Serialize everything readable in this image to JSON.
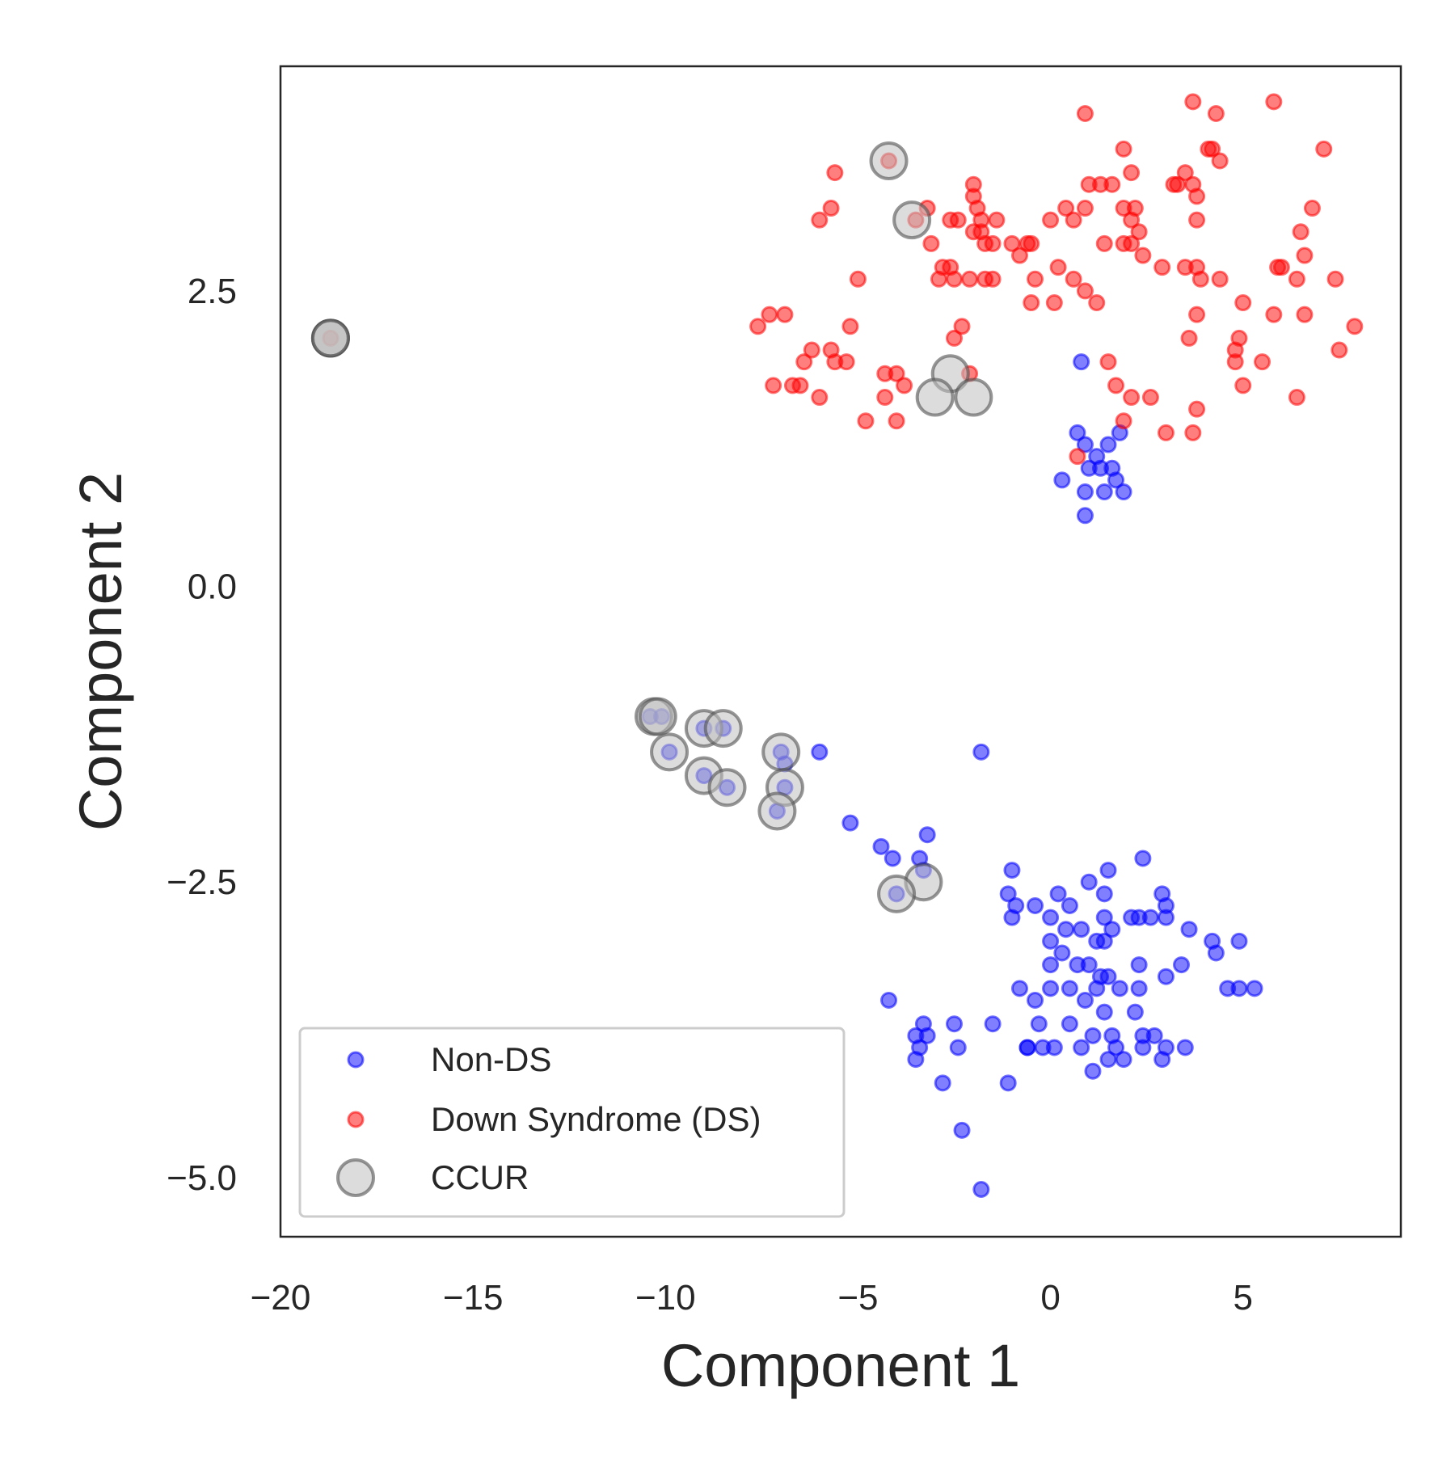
{
  "chart_data": {
    "type": "scatter",
    "title": "",
    "xlabel": "Component 1",
    "ylabel": "Component 2",
    "xlim": [
      -20,
      9.1
    ],
    "ylim": [
      -5.5,
      4.4
    ],
    "xticks": [
      -20,
      -15,
      -10,
      -5,
      0,
      5
    ],
    "xtick_labels": [
      "−20",
      "−15",
      "−10",
      "−5",
      "0",
      "5"
    ],
    "yticks": [
      2.5,
      0.0,
      -2.5,
      -5.0
    ],
    "ytick_labels": [
      "2.5",
      "0.0",
      "−2.5",
      "−5.0"
    ],
    "grid": false,
    "legend_position": "lower-left",
    "series": [
      {
        "name": "Non-DS",
        "color": "#0000ff",
        "marker": "circle",
        "points": [
          [
            0.8,
            1.9
          ],
          [
            0.7,
            1.3
          ],
          [
            0.9,
            1.2
          ],
          [
            1.2,
            1.1
          ],
          [
            1.5,
            1.2
          ],
          [
            1.8,
            1.3
          ],
          [
            1.0,
            1.0
          ],
          [
            1.3,
            1.0
          ],
          [
            1.6,
            1.0
          ],
          [
            0.3,
            0.9
          ],
          [
            0.9,
            0.8
          ],
          [
            1.4,
            0.8
          ],
          [
            1.7,
            0.9
          ],
          [
            1.9,
            0.8
          ],
          [
            0.9,
            0.6
          ],
          [
            -10.4,
            -1.1
          ],
          [
            -10.1,
            -1.1
          ],
          [
            -9.9,
            -1.4
          ],
          [
            -9.0,
            -1.2
          ],
          [
            -8.5,
            -1.2
          ],
          [
            -7.0,
            -1.4
          ],
          [
            -6.9,
            -1.5
          ],
          [
            -9.0,
            -1.6
          ],
          [
            -8.4,
            -1.7
          ],
          [
            -6.9,
            -1.7
          ],
          [
            -7.1,
            -1.9
          ],
          [
            -6.0,
            -1.4
          ],
          [
            -1.8,
            -1.4
          ],
          [
            -5.2,
            -2.0
          ],
          [
            -4.4,
            -2.2
          ],
          [
            -4.1,
            -2.3
          ],
          [
            -3.2,
            -2.1
          ],
          [
            -3.4,
            -2.3
          ],
          [
            -3.3,
            -2.4
          ],
          [
            -4.0,
            -2.6
          ],
          [
            -1.0,
            -2.4
          ],
          [
            -1.1,
            -2.6
          ],
          [
            -0.9,
            -2.7
          ],
          [
            0.2,
            -2.6
          ],
          [
            1.0,
            -2.5
          ],
          [
            1.5,
            -2.4
          ],
          [
            1.4,
            -2.6
          ],
          [
            2.4,
            -2.3
          ],
          [
            2.9,
            -2.6
          ],
          [
            -0.4,
            -2.7
          ],
          [
            0.0,
            -2.8
          ],
          [
            0.5,
            -2.7
          ],
          [
            1.4,
            -2.8
          ],
          [
            2.3,
            -2.8
          ],
          [
            3.0,
            -2.7
          ],
          [
            3.0,
            -2.8
          ],
          [
            -1.0,
            -2.8
          ],
          [
            0.4,
            -2.9
          ],
          [
            0.8,
            -2.9
          ],
          [
            1.6,
            -2.9
          ],
          [
            2.1,
            -2.8
          ],
          [
            2.6,
            -2.8
          ],
          [
            3.6,
            -2.9
          ],
          [
            0.0,
            -3.0
          ],
          [
            0.3,
            -3.1
          ],
          [
            1.4,
            -3.0
          ],
          [
            1.2,
            -3.0
          ],
          [
            4.2,
            -3.0
          ],
          [
            4.3,
            -3.1
          ],
          [
            4.9,
            -3.0
          ],
          [
            0.0,
            -3.2
          ],
          [
            0.7,
            -3.2
          ],
          [
            1.0,
            -3.2
          ],
          [
            1.3,
            -3.3
          ],
          [
            1.5,
            -3.3
          ],
          [
            2.3,
            -3.2
          ],
          [
            3.4,
            -3.2
          ],
          [
            0.0,
            -3.4
          ],
          [
            0.5,
            -3.4
          ],
          [
            1.2,
            -3.4
          ],
          [
            1.8,
            -3.4
          ],
          [
            2.3,
            -3.4
          ],
          [
            3.0,
            -3.3
          ],
          [
            -0.8,
            -3.4
          ],
          [
            -0.4,
            -3.5
          ],
          [
            0.9,
            -3.5
          ],
          [
            1.4,
            -3.6
          ],
          [
            2.2,
            -3.6
          ],
          [
            4.6,
            -3.4
          ],
          [
            4.9,
            -3.4
          ],
          [
            5.3,
            -3.4
          ],
          [
            -4.2,
            -3.5
          ],
          [
            -3.3,
            -3.7
          ],
          [
            -2.5,
            -3.7
          ],
          [
            -1.5,
            -3.7
          ],
          [
            -0.3,
            -3.7
          ],
          [
            0.5,
            -3.7
          ],
          [
            1.1,
            -3.8
          ],
          [
            1.6,
            -3.8
          ],
          [
            2.4,
            -3.8
          ],
          [
            2.7,
            -3.8
          ],
          [
            -3.5,
            -3.8
          ],
          [
            -3.2,
            -3.8
          ],
          [
            -0.6,
            -3.9
          ],
          [
            -0.2,
            -3.9
          ],
          [
            0.8,
            -3.9
          ],
          [
            1.7,
            -3.9
          ],
          [
            2.4,
            -3.9
          ],
          [
            3.0,
            -3.9
          ],
          [
            3.5,
            -3.9
          ],
          [
            -3.4,
            -3.9
          ],
          [
            -2.4,
            -3.9
          ],
          [
            -0.6,
            -3.9
          ],
          [
            0.1,
            -3.9
          ],
          [
            1.5,
            -4.0
          ],
          [
            2.9,
            -4.0
          ],
          [
            -3.5,
            -4.0
          ],
          [
            -2.8,
            -4.2
          ],
          [
            1.1,
            -4.1
          ],
          [
            1.9,
            -4.0
          ],
          [
            -1.1,
            -4.2
          ],
          [
            -2.3,
            -4.6
          ],
          [
            -1.8,
            -5.1
          ]
        ]
      },
      {
        "name": "Down Syndrome (DS)",
        "color": "#ff0000",
        "marker": "circle",
        "points": [
          [
            -4.2,
            3.6
          ],
          [
            -5.6,
            3.5
          ],
          [
            -5.7,
            3.2
          ],
          [
            -6.0,
            3.1
          ],
          [
            -3.5,
            3.1
          ],
          [
            -3.2,
            3.2
          ],
          [
            -3.1,
            2.9
          ],
          [
            -2.8,
            2.7
          ],
          [
            -2.6,
            2.7
          ],
          [
            -2.9,
            2.6
          ],
          [
            -2.5,
            2.6
          ],
          [
            -2.1,
            2.6
          ],
          [
            -2.6,
            3.1
          ],
          [
            -2.4,
            3.1
          ],
          [
            -2.0,
            3.4
          ],
          [
            -2.0,
            3.3
          ],
          [
            -1.9,
            3.2
          ],
          [
            -1.8,
            3.1
          ],
          [
            -2.0,
            3.0
          ],
          [
            -1.8,
            3.0
          ],
          [
            -1.7,
            2.9
          ],
          [
            -1.4,
            3.1
          ],
          [
            -1.5,
            2.9
          ],
          [
            -1.0,
            2.9
          ],
          [
            -0.8,
            2.8
          ],
          [
            -0.6,
            2.9
          ],
          [
            -0.5,
            2.9
          ],
          [
            0.0,
            3.1
          ],
          [
            0.4,
            3.2
          ],
          [
            0.6,
            3.1
          ],
          [
            0.9,
            3.2
          ],
          [
            1.0,
            3.4
          ],
          [
            1.3,
            3.4
          ],
          [
            1.6,
            3.4
          ],
          [
            1.9,
            3.2
          ],
          [
            2.1,
            3.1
          ],
          [
            2.3,
            3.0
          ],
          [
            0.9,
            4.0
          ],
          [
            1.9,
            3.7
          ],
          [
            2.1,
            3.5
          ],
          [
            3.2,
            3.4
          ],
          [
            3.3,
            3.4
          ],
          [
            3.7,
            3.4
          ],
          [
            3.5,
            3.5
          ],
          [
            3.8,
            3.3
          ],
          [
            3.8,
            3.1
          ],
          [
            3.7,
            4.1
          ],
          [
            4.3,
            4.0
          ],
          [
            4.2,
            3.7
          ],
          [
            4.1,
            3.7
          ],
          [
            4.4,
            3.6
          ],
          [
            5.8,
            4.1
          ],
          [
            7.1,
            3.7
          ],
          [
            6.5,
            3.0
          ],
          [
            6.8,
            3.2
          ],
          [
            6.6,
            2.8
          ],
          [
            6.4,
            2.6
          ],
          [
            5.9,
            2.7
          ],
          [
            6.0,
            2.7
          ],
          [
            7.4,
            2.6
          ],
          [
            5.8,
            2.3
          ],
          [
            6.6,
            2.3
          ],
          [
            7.5,
            2.0
          ],
          [
            7.9,
            2.2
          ],
          [
            -7.6,
            2.2
          ],
          [
            -7.3,
            2.3
          ],
          [
            -6.9,
            2.3
          ],
          [
            -6.2,
            2.0
          ],
          [
            -6.4,
            1.9
          ],
          [
            -6.5,
            1.7
          ],
          [
            -5.7,
            2.0
          ],
          [
            -5.6,
            1.9
          ],
          [
            -5.2,
            2.2
          ],
          [
            -5.0,
            2.6
          ],
          [
            -5.3,
            1.9
          ],
          [
            -4.3,
            1.8
          ],
          [
            -4.0,
            1.8
          ],
          [
            -3.8,
            1.7
          ],
          [
            -4.3,
            1.6
          ],
          [
            -4.0,
            1.4
          ],
          [
            -4.8,
            1.4
          ],
          [
            -6.0,
            1.6
          ],
          [
            -7.2,
            1.7
          ],
          [
            -6.7,
            1.7
          ],
          [
            -2.5,
            2.1
          ],
          [
            -2.3,
            2.2
          ],
          [
            -2.1,
            1.8
          ],
          [
            -1.7,
            2.6
          ],
          [
            -1.5,
            2.6
          ],
          [
            -0.4,
            2.6
          ],
          [
            -0.5,
            2.4
          ],
          [
            0.1,
            2.4
          ],
          [
            0.2,
            2.7
          ],
          [
            0.6,
            2.6
          ],
          [
            0.9,
            2.5
          ],
          [
            1.2,
            2.4
          ],
          [
            1.4,
            2.9
          ],
          [
            1.9,
            2.9
          ],
          [
            2.1,
            2.9
          ],
          [
            2.4,
            2.8
          ],
          [
            2.2,
            3.2
          ],
          [
            2.9,
            2.7
          ],
          [
            3.5,
            2.7
          ],
          [
            3.8,
            2.7
          ],
          [
            3.9,
            2.6
          ],
          [
            4.4,
            2.6
          ],
          [
            3.8,
            2.3
          ],
          [
            5.0,
            2.4
          ],
          [
            3.6,
            2.1
          ],
          [
            4.8,
            2.0
          ],
          [
            4.9,
            2.1
          ],
          [
            4.8,
            1.9
          ],
          [
            5.0,
            1.7
          ],
          [
            5.5,
            1.9
          ],
          [
            1.5,
            1.9
          ],
          [
            1.7,
            1.7
          ],
          [
            2.1,
            1.6
          ],
          [
            2.6,
            1.6
          ],
          [
            1.9,
            1.4
          ],
          [
            3.0,
            1.3
          ],
          [
            3.8,
            1.5
          ],
          [
            3.7,
            1.3
          ],
          [
            6.4,
            1.6
          ],
          [
            0.7,
            1.1
          ],
          [
            -18.7,
            2.1
          ]
        ]
      },
      {
        "name": "CCUR",
        "color": "#808080",
        "marker": "circle-large",
        "points": [
          [
            -4.2,
            3.6
          ],
          [
            -3.6,
            3.1
          ],
          [
            -18.7,
            2.1
          ],
          [
            -18.7,
            2.1
          ],
          [
            -18.7,
            2.1
          ],
          [
            -2.6,
            1.8
          ],
          [
            -3.0,
            1.6
          ],
          [
            -2.0,
            1.6
          ],
          [
            -10.3,
            -1.1
          ],
          [
            -10.2,
            -1.1
          ],
          [
            -9.0,
            -1.2
          ],
          [
            -8.5,
            -1.2
          ],
          [
            -9.9,
            -1.4
          ],
          [
            -7.0,
            -1.4
          ],
          [
            -9.0,
            -1.6
          ],
          [
            -8.4,
            -1.7
          ],
          [
            -6.9,
            -1.7
          ],
          [
            -7.1,
            -1.9
          ],
          [
            -3.3,
            -2.5
          ],
          [
            -4.0,
            -2.6
          ]
        ]
      }
    ]
  }
}
